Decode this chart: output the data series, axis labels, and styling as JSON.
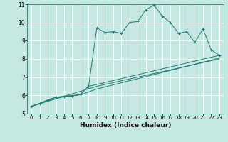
{
  "title": "",
  "xlabel": "Humidex (Indice chaleur)",
  "bg_color": "#c5e8e2",
  "line_color": "#1e7a6a",
  "grid_color": "#b0d8d0",
  "xlim": [
    -0.5,
    23.5
  ],
  "ylim": [
    5,
    11
  ],
  "xticks": [
    0,
    1,
    2,
    3,
    4,
    5,
    6,
    7,
    8,
    9,
    10,
    11,
    12,
    13,
    14,
    15,
    16,
    17,
    18,
    19,
    20,
    21,
    22,
    23
  ],
  "yticks": [
    5,
    6,
    7,
    8,
    9,
    10,
    11
  ],
  "line_main": {
    "x": [
      0,
      1,
      2,
      3,
      4,
      5,
      6,
      7,
      8,
      9,
      10,
      11,
      12,
      13,
      14,
      15,
      16,
      17,
      18,
      19,
      20,
      21,
      22,
      23
    ],
    "y": [
      5.4,
      5.55,
      5.75,
      5.9,
      5.95,
      5.98,
      6.05,
      6.5,
      9.7,
      9.45,
      9.5,
      9.4,
      10.0,
      10.05,
      10.7,
      10.95,
      10.35,
      10.0,
      9.4,
      9.5,
      8.9,
      9.65,
      8.5,
      8.2
    ]
  },
  "line2": {
    "x": [
      0,
      1,
      2,
      3,
      4,
      5,
      6,
      7,
      8,
      23
    ],
    "y": [
      5.4,
      5.55,
      5.75,
      5.9,
      5.95,
      5.98,
      6.05,
      6.5,
      6.6,
      8.2
    ]
  },
  "line3": {
    "x": [
      0,
      2,
      4,
      6,
      8,
      23
    ],
    "y": [
      5.4,
      5.72,
      5.93,
      6.03,
      6.35,
      8.05
    ]
  },
  "line4": {
    "x": [
      0,
      8,
      23
    ],
    "y": [
      5.4,
      6.5,
      8.0
    ]
  }
}
